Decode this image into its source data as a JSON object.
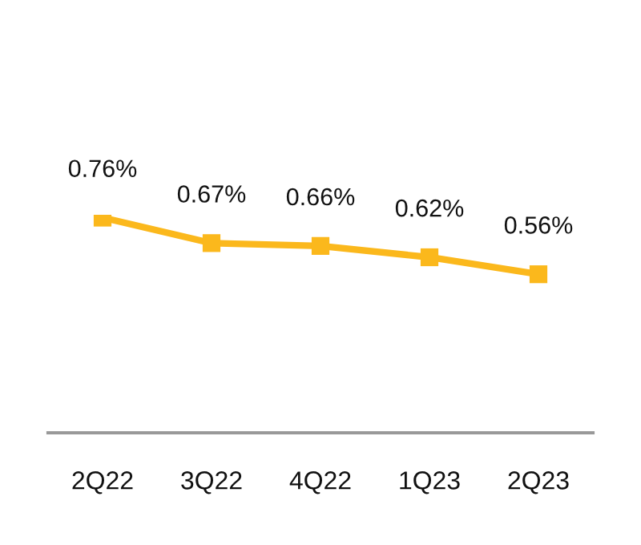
{
  "chart_data": {
    "type": "line",
    "categories": [
      "2Q22",
      "3Q22",
      "4Q22",
      "1Q23",
      "2Q23"
    ],
    "series": [
      {
        "color": "#fbb81c",
        "values": [
          0.76,
          0.67,
          0.66,
          0.62,
          0.56
        ],
        "value_labels": [
          "0.76%",
          "0.67%",
          "0.66%",
          "0.62%",
          "0.56%"
        ]
      }
    ],
    "marker": "square",
    "line_style": "solid",
    "tick_labels": "x",
    "grid": false
  }
}
